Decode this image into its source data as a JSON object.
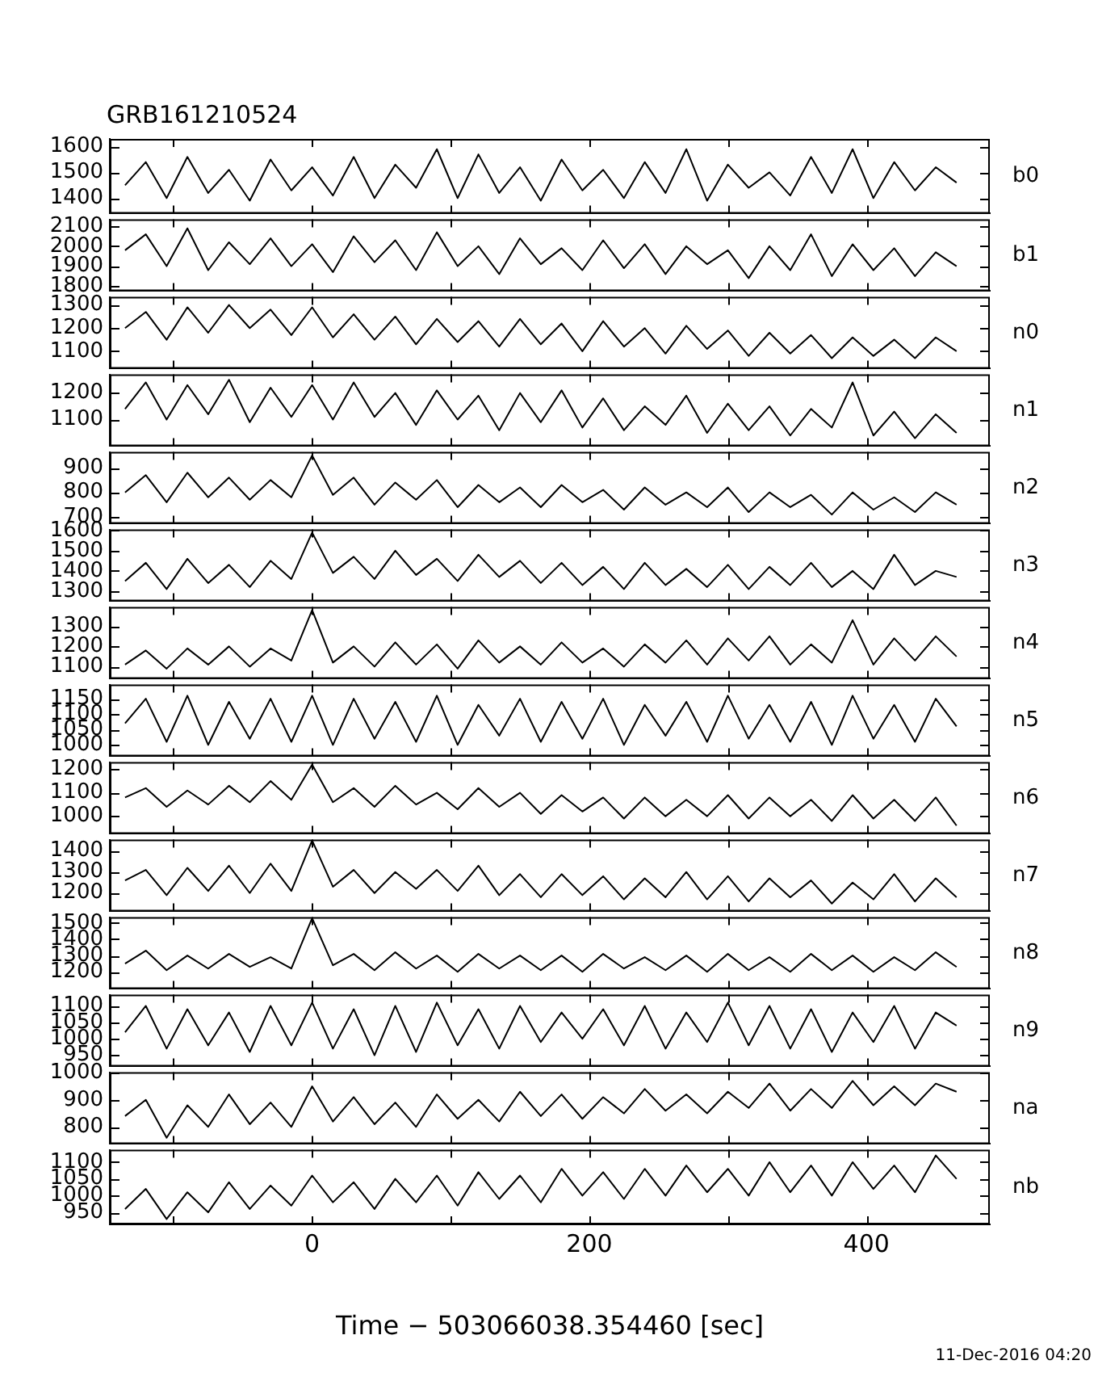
{
  "chart_data": [
    {
      "type": "line",
      "title": "GRB161210524",
      "x": [
        -135,
        -120,
        -105,
        -90,
        -75,
        -60,
        -45,
        -30,
        -15,
        0,
        15,
        30,
        45,
        60,
        75,
        90,
        105,
        120,
        135,
        150,
        165,
        180,
        195,
        210,
        225,
        240,
        255,
        270,
        285,
        300,
        315,
        330,
        345,
        360,
        375,
        390,
        405,
        420,
        435,
        450,
        465
      ],
      "series": [
        {
          "name": "b0",
          "color": "#000000",
          "values": [
            1450,
            1540,
            1400,
            1560,
            1420,
            1510,
            1390,
            1550,
            1430,
            1520,
            1410,
            1560,
            1400,
            1530,
            1440,
            1590,
            1400,
            1570,
            1420,
            1520,
            1390,
            1550,
            1430,
            1510,
            1400,
            1540,
            1420,
            1590,
            1390,
            1530,
            1440,
            1500,
            1410,
            1560,
            1420,
            1590,
            1400,
            1540,
            1430,
            1520,
            1460
          ]
        }
      ],
      "xlim": [
        -146,
        489
      ],
      "xticks": [
        {
          "value": -100,
          "label": null
        },
        0,
        {
          "value": 100,
          "label": null
        },
        200,
        {
          "value": 300,
          "label": null
        },
        400
      ],
      "ylim": [
        1340,
        1630
      ],
      "yticks": [
        1400,
        1500,
        1600
      ],
      "tick_labels": "y",
      "marker": "none",
      "line_style": "solid"
    },
    {
      "type": "line",
      "x": [
        -135,
        -120,
        -105,
        -90,
        -75,
        -60,
        -45,
        -30,
        -15,
        0,
        15,
        30,
        45,
        60,
        75,
        90,
        105,
        120,
        135,
        150,
        165,
        180,
        195,
        210,
        225,
        240,
        255,
        270,
        285,
        300,
        315,
        330,
        345,
        360,
        375,
        390,
        405,
        420,
        435,
        450,
        465
      ],
      "series": [
        {
          "name": "b1",
          "color": "#000000",
          "values": [
            1980,
            2060,
            1900,
            2090,
            1880,
            2020,
            1910,
            2040,
            1900,
            2010,
            1870,
            2050,
            1920,
            2030,
            1880,
            2070,
            1900,
            2000,
            1860,
            2040,
            1910,
            1990,
            1880,
            2030,
            1890,
            2010,
            1860,
            2000,
            1910,
            1980,
            1840,
            2000,
            1880,
            2060,
            1850,
            2010,
            1880,
            1990,
            1850,
            1970,
            1900
          ]
        }
      ],
      "xlim": [
        -146,
        489
      ],
      "xticks": [
        {
          "value": -100,
          "label": null
        },
        0,
        {
          "value": 100,
          "label": null
        },
        200,
        {
          "value": 300,
          "label": null
        },
        400
      ],
      "ylim": [
        1775,
        2135
      ],
      "yticks": [
        1800,
        1900,
        2000,
        2100
      ],
      "tick_labels": "y",
      "marker": "none",
      "line_style": "solid"
    },
    {
      "type": "line",
      "x": [
        -135,
        -120,
        -105,
        -90,
        -75,
        -60,
        -45,
        -30,
        -15,
        0,
        15,
        30,
        45,
        60,
        75,
        90,
        105,
        120,
        135,
        150,
        165,
        180,
        195,
        210,
        225,
        240,
        255,
        270,
        285,
        300,
        315,
        330,
        345,
        360,
        375,
        390,
        405,
        420,
        435,
        450,
        465
      ],
      "series": [
        {
          "name": "n0",
          "color": "#000000",
          "values": [
            1200,
            1270,
            1150,
            1290,
            1180,
            1300,
            1200,
            1280,
            1170,
            1290,
            1160,
            1260,
            1150,
            1250,
            1130,
            1240,
            1140,
            1230,
            1120,
            1240,
            1130,
            1220,
            1100,
            1230,
            1120,
            1200,
            1090,
            1210,
            1110,
            1190,
            1080,
            1180,
            1090,
            1170,
            1070,
            1160,
            1080,
            1150,
            1070,
            1160,
            1100
          ]
        }
      ],
      "xlim": [
        -146,
        489
      ],
      "xticks": [
        {
          "value": -100,
          "label": null
        },
        0,
        {
          "value": 100,
          "label": null
        },
        200,
        {
          "value": 300,
          "label": null
        },
        400
      ],
      "ylim": [
        1025,
        1335
      ],
      "yticks": [
        1100,
        1200,
        1300
      ],
      "tick_labels": "y",
      "marker": "none",
      "line_style": "solid"
    },
    {
      "type": "line",
      "x": [
        -135,
        -120,
        -105,
        -90,
        -75,
        -60,
        -45,
        -30,
        -15,
        0,
        15,
        30,
        45,
        60,
        75,
        90,
        105,
        120,
        135,
        150,
        165,
        180,
        195,
        210,
        225,
        240,
        255,
        270,
        285,
        300,
        315,
        330,
        345,
        360,
        375,
        390,
        405,
        420,
        435,
        450,
        465
      ],
      "series": [
        {
          "name": "n1",
          "color": "#000000",
          "values": [
            1140,
            1240,
            1100,
            1230,
            1120,
            1250,
            1090,
            1220,
            1110,
            1230,
            1100,
            1240,
            1110,
            1200,
            1080,
            1210,
            1100,
            1190,
            1060,
            1200,
            1090,
            1210,
            1070,
            1180,
            1060,
            1150,
            1080,
            1190,
            1050,
            1160,
            1060,
            1150,
            1040,
            1140,
            1070,
            1240,
            1040,
            1130,
            1030,
            1120,
            1050
          ]
        }
      ],
      "xlim": [
        -146,
        489
      ],
      "xticks": [
        {
          "value": -100,
          "label": null
        },
        0,
        {
          "value": 100,
          "label": null
        },
        200,
        {
          "value": 300,
          "label": null
        },
        400
      ],
      "ylim": [
        1000,
        1270
      ],
      "yticks": [
        1100,
        1200
      ],
      "tick_labels": "y",
      "marker": "none",
      "line_style": "solid"
    },
    {
      "type": "line",
      "x": [
        -135,
        -120,
        -105,
        -90,
        -75,
        -60,
        -45,
        -30,
        -15,
        0,
        15,
        30,
        45,
        60,
        75,
        90,
        105,
        120,
        135,
        150,
        165,
        180,
        195,
        210,
        225,
        240,
        255,
        270,
        285,
        300,
        315,
        330,
        345,
        360,
        375,
        390,
        405,
        420,
        435,
        450,
        465
      ],
      "series": [
        {
          "name": "n2",
          "color": "#000000",
          "values": [
            800,
            870,
            760,
            880,
            780,
            860,
            770,
            850,
            780,
            950,
            790,
            860,
            750,
            840,
            770,
            850,
            740,
            830,
            760,
            820,
            740,
            830,
            760,
            810,
            730,
            820,
            750,
            800,
            740,
            820,
            720,
            800,
            740,
            790,
            710,
            800,
            730,
            780,
            720,
            800,
            750
          ]
        }
      ],
      "xlim": [
        -146,
        489
      ],
      "xticks": [
        {
          "value": -100,
          "label": null
        },
        0,
        {
          "value": 100,
          "label": null
        },
        200,
        {
          "value": 300,
          "label": null
        },
        400
      ],
      "ylim": [
        673,
        964
      ],
      "yticks": [
        700,
        800,
        900
      ],
      "tick_labels": "y",
      "marker": "none",
      "line_style": "solid"
    },
    {
      "type": "line",
      "x": [
        -135,
        -120,
        -105,
        -90,
        -75,
        -60,
        -45,
        -30,
        -15,
        0,
        15,
        30,
        45,
        60,
        75,
        90,
        105,
        120,
        135,
        150,
        165,
        180,
        195,
        210,
        225,
        240,
        255,
        270,
        285,
        300,
        315,
        330,
        345,
        360,
        375,
        390,
        405,
        420,
        435,
        450,
        465
      ],
      "series": [
        {
          "name": "n3",
          "color": "#000000",
          "values": [
            1350,
            1440,
            1310,
            1460,
            1340,
            1430,
            1320,
            1450,
            1360,
            1590,
            1390,
            1470,
            1360,
            1500,
            1380,
            1460,
            1350,
            1480,
            1370,
            1450,
            1340,
            1440,
            1330,
            1420,
            1310,
            1440,
            1330,
            1410,
            1320,
            1430,
            1310,
            1420,
            1330,
            1440,
            1320,
            1400,
            1310,
            1480,
            1330,
            1400,
            1370
          ]
        }
      ],
      "xlim": [
        -146,
        489
      ],
      "xticks": [
        {
          "value": -100,
          "label": null
        },
        0,
        {
          "value": 100,
          "label": null
        },
        200,
        {
          "value": 300,
          "label": null
        },
        400
      ],
      "ylim": [
        1250,
        1605
      ],
      "yticks": [
        1300,
        1400,
        1500,
        1600
      ],
      "tick_labels": "y",
      "marker": "none",
      "line_style": "solid"
    },
    {
      "type": "line",
      "x": [
        -135,
        -120,
        -105,
        -90,
        -75,
        -60,
        -45,
        -30,
        -15,
        0,
        15,
        30,
        45,
        60,
        75,
        90,
        105,
        120,
        135,
        150,
        165,
        180,
        195,
        210,
        225,
        240,
        255,
        270,
        285,
        300,
        315,
        330,
        345,
        360,
        375,
        390,
        405,
        420,
        435,
        450,
        465
      ],
      "series": [
        {
          "name": "n4",
          "color": "#000000",
          "values": [
            1110,
            1180,
            1090,
            1190,
            1110,
            1200,
            1100,
            1190,
            1130,
            1380,
            1120,
            1200,
            1100,
            1220,
            1110,
            1210,
            1090,
            1230,
            1120,
            1200,
            1110,
            1220,
            1120,
            1190,
            1100,
            1210,
            1120,
            1230,
            1110,
            1240,
            1130,
            1250,
            1110,
            1210,
            1120,
            1330,
            1110,
            1240,
            1130,
            1250,
            1150
          ]
        }
      ],
      "xlim": [
        -146,
        489
      ],
      "xticks": [
        {
          "value": -100,
          "label": null
        },
        0,
        {
          "value": 100,
          "label": null
        },
        200,
        {
          "value": 300,
          "label": null
        },
        400
      ],
      "ylim": [
        1040,
        1395
      ],
      "yticks": [
        1100,
        1200,
        1300
      ],
      "tick_labels": "y",
      "marker": "none",
      "line_style": "solid"
    },
    {
      "type": "line",
      "x": [
        -135,
        -120,
        -105,
        -90,
        -75,
        -60,
        -45,
        -30,
        -15,
        0,
        15,
        30,
        45,
        60,
        75,
        90,
        105,
        120,
        135,
        150,
        165,
        180,
        195,
        210,
        225,
        240,
        255,
        270,
        285,
        300,
        315,
        330,
        345,
        360,
        375,
        390,
        405,
        420,
        435,
        450,
        465
      ],
      "series": [
        {
          "name": "n5",
          "color": "#000000",
          "values": [
            1070,
            1150,
            1010,
            1160,
            1000,
            1140,
            1020,
            1150,
            1010,
            1160,
            1000,
            1150,
            1020,
            1140,
            1010,
            1160,
            1000,
            1130,
            1030,
            1150,
            1010,
            1140,
            1020,
            1150,
            1000,
            1130,
            1030,
            1140,
            1010,
            1160,
            1020,
            1130,
            1010,
            1140,
            1000,
            1160,
            1020,
            1130,
            1010,
            1150,
            1060
          ]
        }
      ],
      "xlim": [
        -146,
        489
      ],
      "xticks": [
        {
          "value": -100,
          "label": null
        },
        0,
        {
          "value": 100,
          "label": null
        },
        200,
        {
          "value": 300,
          "label": null
        },
        400
      ],
      "ylim": [
        963,
        1196
      ],
      "yticks": [
        1000,
        1050,
        1100,
        1150
      ],
      "tick_labels": "y",
      "marker": "none",
      "line_style": "solid"
    },
    {
      "type": "line",
      "x": [
        -135,
        -120,
        -105,
        -90,
        -75,
        -60,
        -45,
        -30,
        -15,
        0,
        15,
        30,
        45,
        60,
        75,
        90,
        105,
        120,
        135,
        150,
        165,
        180,
        195,
        210,
        225,
        240,
        255,
        270,
        285,
        300,
        315,
        330,
        345,
        360,
        375,
        390,
        405,
        420,
        435,
        450,
        465
      ],
      "series": [
        {
          "name": "n6",
          "color": "#000000",
          "values": [
            1080,
            1120,
            1040,
            1110,
            1050,
            1130,
            1060,
            1150,
            1070,
            1220,
            1060,
            1120,
            1040,
            1130,
            1050,
            1100,
            1030,
            1120,
            1040,
            1100,
            1010,
            1090,
            1020,
            1080,
            990,
            1080,
            1000,
            1070,
            1000,
            1090,
            990,
            1080,
            1000,
            1070,
            980,
            1090,
            990,
            1070,
            980,
            1080,
            960
          ]
        }
      ],
      "xlim": [
        -146,
        489
      ],
      "xticks": [
        {
          "value": -100,
          "label": null
        },
        0,
        {
          "value": 100,
          "label": null
        },
        200,
        {
          "value": 300,
          "label": null
        },
        400
      ],
      "ylim": [
        925,
        1231
      ],
      "yticks": [
        1000,
        1100,
        1200
      ],
      "tick_labels": "y",
      "marker": "none",
      "line_style": "solid"
    },
    {
      "type": "line",
      "x": [
        -135,
        -120,
        -105,
        -90,
        -75,
        -60,
        -45,
        -30,
        -15,
        0,
        15,
        30,
        45,
        60,
        75,
        90,
        105,
        120,
        135,
        150,
        165,
        180,
        195,
        210,
        225,
        240,
        255,
        270,
        285,
        300,
        315,
        330,
        345,
        360,
        375,
        390,
        405,
        420,
        435,
        450,
        465
      ],
      "series": [
        {
          "name": "n7",
          "color": "#000000",
          "values": [
            1260,
            1310,
            1190,
            1320,
            1210,
            1330,
            1200,
            1340,
            1210,
            1450,
            1230,
            1310,
            1200,
            1300,
            1220,
            1310,
            1210,
            1330,
            1190,
            1290,
            1180,
            1290,
            1190,
            1280,
            1170,
            1270,
            1180,
            1300,
            1170,
            1280,
            1160,
            1270,
            1180,
            1260,
            1150,
            1250,
            1170,
            1290,
            1160,
            1270,
            1180
          ]
        }
      ],
      "xlim": [
        -146,
        489
      ],
      "xticks": [
        {
          "value": -100,
          "label": null
        },
        0,
        {
          "value": 100,
          "label": null
        },
        200,
        {
          "value": 300,
          "label": null
        },
        400
      ],
      "ylim": [
        1113,
        1454
      ],
      "yticks": [
        1200,
        1300,
        1400
      ],
      "tick_labels": "y",
      "marker": "none",
      "line_style": "solid"
    },
    {
      "type": "line",
      "x": [
        -135,
        -120,
        -105,
        -90,
        -75,
        -60,
        -45,
        -30,
        -15,
        0,
        15,
        30,
        45,
        60,
        75,
        90,
        105,
        120,
        135,
        150,
        165,
        180,
        195,
        210,
        225,
        240,
        255,
        270,
        285,
        300,
        315,
        330,
        345,
        360,
        375,
        390,
        405,
        420,
        435,
        450,
        465
      ],
      "series": [
        {
          "name": "n8",
          "color": "#000000",
          "values": [
            1250,
            1330,
            1210,
            1300,
            1220,
            1310,
            1230,
            1290,
            1220,
            1530,
            1240,
            1310,
            1210,
            1320,
            1220,
            1300,
            1200,
            1310,
            1220,
            1300,
            1210,
            1300,
            1200,
            1310,
            1220,
            1290,
            1210,
            1300,
            1200,
            1310,
            1210,
            1290,
            1200,
            1310,
            1210,
            1300,
            1200,
            1290,
            1210,
            1320,
            1230
          ]
        }
      ],
      "xlim": [
        -146,
        489
      ],
      "xticks": [
        {
          "value": -100,
          "label": null
        },
        0,
        {
          "value": 100,
          "label": null
        },
        200,
        {
          "value": 300,
          "label": null
        },
        400
      ],
      "ylim": [
        1095,
        1536
      ],
      "yticks": [
        1200,
        1300,
        1400,
        1500
      ],
      "tick_labels": "y",
      "marker": "none",
      "line_style": "solid"
    },
    {
      "type": "line",
      "x": [
        -135,
        -120,
        -105,
        -90,
        -75,
        -60,
        -45,
        -30,
        -15,
        0,
        15,
        30,
        45,
        60,
        75,
        90,
        105,
        120,
        135,
        150,
        165,
        180,
        195,
        210,
        225,
        240,
        255,
        270,
        285,
        300,
        315,
        330,
        345,
        360,
        375,
        390,
        405,
        420,
        435,
        450,
        465
      ],
      "series": [
        {
          "name": "n9",
          "color": "#000000",
          "values": [
            1020,
            1100,
            970,
            1090,
            980,
            1080,
            960,
            1100,
            980,
            1110,
            970,
            1090,
            950,
            1100,
            960,
            1110,
            980,
            1090,
            970,
            1100,
            990,
            1080,
            1000,
            1090,
            980,
            1100,
            970,
            1080,
            990,
            1110,
            980,
            1100,
            970,
            1090,
            960,
            1080,
            990,
            1100,
            970,
            1080,
            1040
          ]
        }
      ],
      "xlim": [
        -146,
        489
      ],
      "xticks": [
        {
          "value": -100,
          "label": null
        },
        0,
        {
          "value": 100,
          "label": null
        },
        200,
        {
          "value": 300,
          "label": null
        },
        400
      ],
      "ylim": [
        916,
        1134
      ],
      "yticks": [
        950,
        1000,
        1050,
        1100
      ],
      "tick_labels": "y",
      "marker": "none",
      "line_style": "solid"
    },
    {
      "type": "line",
      "x": [
        -135,
        -120,
        -105,
        -90,
        -75,
        -60,
        -45,
        -30,
        -15,
        0,
        15,
        30,
        45,
        60,
        75,
        90,
        105,
        120,
        135,
        150,
        165,
        180,
        195,
        210,
        225,
        240,
        255,
        270,
        285,
        300,
        315,
        330,
        345,
        360,
        375,
        390,
        405,
        420,
        435,
        450,
        465
      ],
      "series": [
        {
          "name": "na",
          "color": "#000000",
          "values": [
            840,
            900,
            760,
            880,
            800,
            920,
            810,
            890,
            800,
            950,
            820,
            910,
            810,
            890,
            800,
            920,
            830,
            900,
            820,
            930,
            840,
            920,
            830,
            910,
            850,
            940,
            860,
            920,
            850,
            930,
            870,
            960,
            860,
            940,
            870,
            970,
            880,
            950,
            880,
            960,
            930
          ]
        }
      ],
      "xlim": [
        -146,
        489
      ],
      "xticks": [
        {
          "value": -100,
          "label": null
        },
        0,
        {
          "value": 100,
          "label": null
        },
        200,
        {
          "value": 300,
          "label": null
        },
        400
      ],
      "ylim": [
        737,
        1002
      ],
      "yticks": [
        800,
        900,
        1000
      ],
      "tick_labels": "y",
      "marker": "none",
      "line_style": "solid"
    },
    {
      "type": "line",
      "xlabel": "Time − 503066038.354460 [sec]",
      "annotations": [
        "11-Dec-2016 04:20"
      ],
      "x": [
        -135,
        -120,
        -105,
        -90,
        -75,
        -60,
        -45,
        -30,
        -15,
        0,
        15,
        30,
        45,
        60,
        75,
        90,
        105,
        120,
        135,
        150,
        165,
        180,
        195,
        210,
        225,
        240,
        255,
        270,
        285,
        300,
        315,
        330,
        345,
        360,
        375,
        390,
        405,
        420,
        435,
        450,
        465
      ],
      "series": [
        {
          "name": "nb",
          "color": "#000000",
          "values": [
            960,
            1020,
            930,
            1010,
            950,
            1040,
            960,
            1030,
            970,
            1060,
            980,
            1040,
            960,
            1050,
            980,
            1060,
            970,
            1070,
            990,
            1060,
            980,
            1080,
            1000,
            1070,
            990,
            1080,
            1000,
            1090,
            1010,
            1080,
            1000,
            1100,
            1010,
            1090,
            1000,
            1100,
            1020,
            1090,
            1010,
            1120,
            1050
          ]
        }
      ],
      "xlim": [
        -146,
        489
      ],
      "xticks": [
        {
          "value": -100,
          "label": null
        },
        0,
        {
          "value": 100,
          "label": null
        },
        200,
        {
          "value": 300,
          "label": null
        },
        400
      ],
      "ylim": [
        914,
        1137
      ],
      "yticks": [
        950,
        1000,
        1050,
        1100
      ],
      "marker": "none",
      "line_style": "solid"
    }
  ]
}
